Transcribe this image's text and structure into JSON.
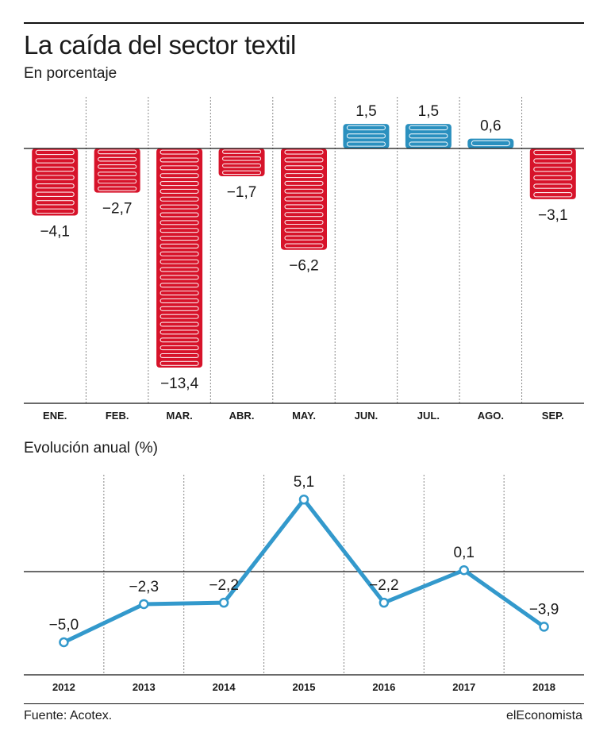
{
  "header": {
    "title": "La caída del sector textil",
    "subtitle": "En porcentaje"
  },
  "section2": {
    "title": "Evolución anual (%)"
  },
  "footer": {
    "source": "Fuente: Acotex.",
    "brand": "elEconomista"
  },
  "colors": {
    "negative": "#d7132a",
    "positive": "#2a90bf",
    "line": "#3399cc"
  },
  "chart_data": [
    {
      "type": "bar",
      "categories": [
        "ENE.",
        "FEB.",
        "MAR.",
        "ABR.",
        "MAY.",
        "JUN.",
        "JUL.",
        "AGO.",
        "SEP."
      ],
      "values": [
        -4.1,
        -2.7,
        -13.4,
        -1.7,
        -6.2,
        1.5,
        1.5,
        0.6,
        -3.1
      ],
      "value_labels": [
        "−4,1",
        "−2,7",
        "−13,4",
        "−1,7",
        "−6,2",
        "1,5",
        "1,5",
        "0,6",
        "−3,1"
      ],
      "title": "La caída del sector textil",
      "ylabel": "En porcentaje",
      "ylim": [
        -13.4,
        1.5
      ]
    },
    {
      "type": "line",
      "categories": [
        "2012",
        "2013",
        "2014",
        "2015",
        "2016",
        "2017",
        "2018"
      ],
      "values": [
        -5.0,
        -2.3,
        -2.2,
        5.1,
        -2.2,
        0.1,
        -3.9
      ],
      "value_labels": [
        "−5,0",
        "−2,3",
        "−2,2",
        "5,1",
        "−2,2",
        "0,1",
        "−3,9"
      ],
      "title": "Evolución anual (%)",
      "ylim": [
        -5.0,
        5.1
      ]
    }
  ]
}
